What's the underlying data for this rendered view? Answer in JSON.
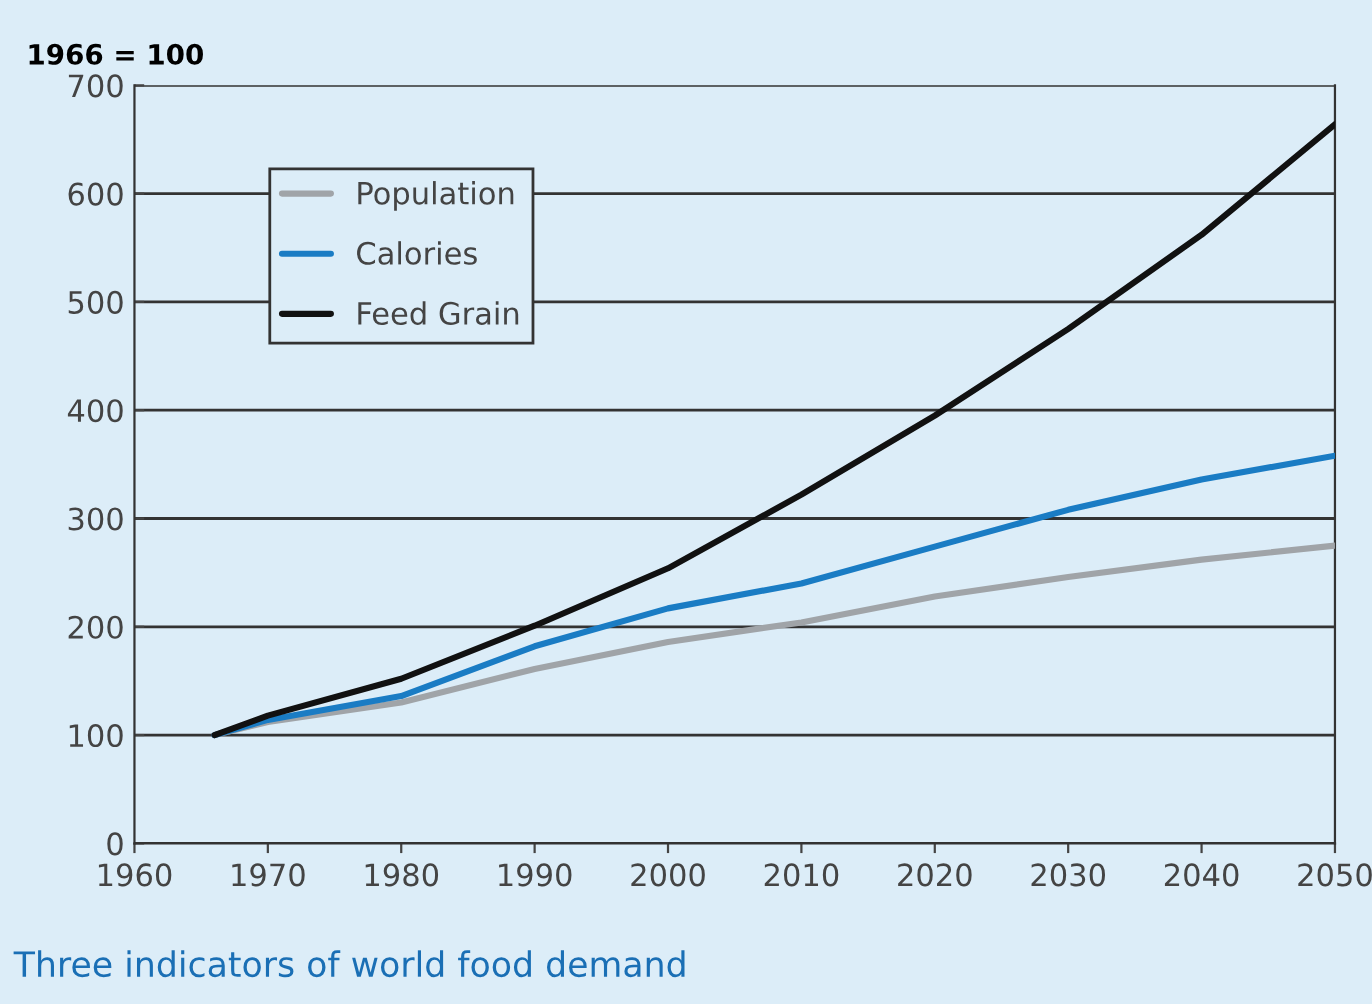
{
  "chart_data": {
    "type": "line",
    "title": "Three indicators of world food demand",
    "ylabel": "1966 = 100",
    "x": [
      1966,
      1970,
      1980,
      1990,
      2000,
      2010,
      2020,
      2030,
      2040,
      2050
    ],
    "series": [
      {
        "name": "Population",
        "color": "#a0a4a8",
        "values": [
          100,
          112,
          130,
          161,
          186,
          204,
          228,
          246,
          262,
          275
        ]
      },
      {
        "name": "Calories",
        "color": "#1a7cc4",
        "values": [
          100,
          114,
          136,
          182,
          217,
          240,
          274,
          308,
          336,
          358
        ]
      },
      {
        "name": "Feed Grain",
        "color": "#111111",
        "values": [
          100,
          118,
          152,
          201,
          254,
          322,
          395,
          475,
          562,
          664
        ]
      }
    ],
    "xlim": [
      1960,
      2050
    ],
    "xticks": [
      1960,
      1970,
      1980,
      1990,
      2000,
      2010,
      2020,
      2030,
      2040,
      2050
    ],
    "ylim": [
      0,
      700
    ],
    "yticks": [
      0,
      100,
      200,
      300,
      400,
      500,
      600,
      700
    ],
    "grid": "y",
    "legend": "top left",
    "marker": "none",
    "line_style": "solid"
  }
}
